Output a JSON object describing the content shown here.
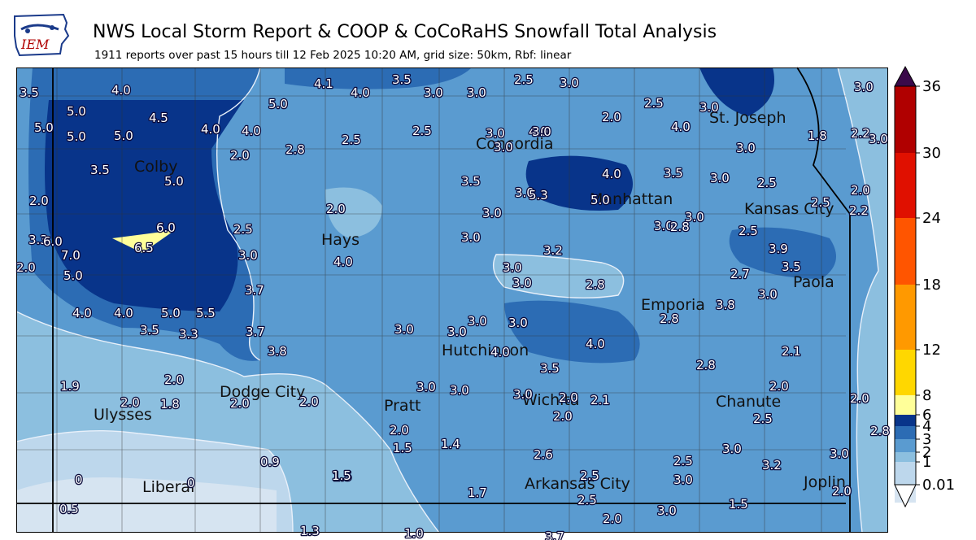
{
  "title": "NWS Local Storm Report & COOP & CoCoRaHS Snowfall Total Analysis",
  "subtitle": "1911 reports over past 15 hours till 12 Feb 2025 10:20 AM, grid size: 50km, Rbf: linear",
  "logo_text": "IEM",
  "colorbar": {
    "ticks": [
      "0.01",
      "1",
      "2",
      "3",
      "4",
      "6",
      "8",
      "12",
      "18",
      "24",
      "30",
      "36"
    ],
    "colors": [
      "#ffffff",
      "#d6e4f1",
      "#bdd7ec",
      "#8cbfdf",
      "#5a9bd0",
      "#2c6cb4",
      "#08348a",
      "#ffff99",
      "#ffd700",
      "#ff9900",
      "#ff5500",
      "#e01000",
      "#b00000",
      "#7a0000",
      "#3a0a4a"
    ]
  },
  "cities": [
    {
      "name": "Colby",
      "text": "Colby"
    },
    {
      "name": "Hays",
      "text": "Hays"
    },
    {
      "name": "Concordia",
      "text": "Concordia"
    },
    {
      "name": "Manhattan",
      "text": "Manhattan"
    },
    {
      "name": "St-Joseph",
      "text": "St. Joseph"
    },
    {
      "name": "Kansas-City",
      "text": "Kansas City"
    },
    {
      "name": "Paola",
      "text": "Paola"
    },
    {
      "name": "Emporia",
      "text": "Emporia"
    },
    {
      "name": "Hutchinson",
      "text": "Hutchinson"
    },
    {
      "name": "Dodge-City",
      "text": "Dodge City"
    },
    {
      "name": "Pratt",
      "text": "Pratt"
    },
    {
      "name": "Wichita",
      "text": "Wichita"
    },
    {
      "name": "Chanute",
      "text": "Chanute"
    },
    {
      "name": "Ulysses",
      "text": "Ulysses"
    },
    {
      "name": "Liberal",
      "text": "Liberal"
    },
    {
      "name": "Arkansas-City",
      "text": "Arkansas City"
    },
    {
      "name": "Joplin",
      "text": "Joplin"
    }
  ],
  "snow_values": [
    "3.5",
    "4.0",
    "4.1",
    "4.0",
    "3.5",
    "3.0",
    "3.0",
    "2.5",
    "3.0",
    "3.0",
    "5.0",
    "4.5",
    "5.0",
    "5.0",
    "5.0",
    "5.0",
    "4.0",
    "4.0",
    "2.5",
    "2.5",
    "2.5",
    "3.0",
    "2.2",
    "3.0",
    "2.0",
    "4.0",
    "4.0",
    "1.8",
    "3.0",
    "2.0",
    "2.8",
    "3.0",
    "3.0",
    "3.0",
    "3.5",
    "5.0",
    "3.5",
    "4.0",
    "3.5",
    "3.0",
    "2.5",
    "2.0",
    "3.0",
    "2.5",
    "2.0",
    "5.3",
    "5.0",
    "3.0",
    "2.0",
    "2.2",
    "6.0",
    "3.0",
    "3.0",
    "3.0",
    "2.5",
    "3.3",
    "2.8",
    "6.0",
    "6.5",
    "2.5",
    "7.0",
    "3.0",
    "3.2",
    "3.9",
    "2.0",
    "4.0",
    "5.0",
    "3.0",
    "3.0",
    "2.8",
    "2.7",
    "3.5",
    "3.0",
    "3.7",
    "4.0",
    "4.0",
    "5.0",
    "5.5",
    "3.0",
    "3.0",
    "3.0",
    "3.8",
    "3.5",
    "3.3",
    "3.7",
    "3.8",
    "3.0",
    "4.0",
    "2.1",
    "2.8",
    "2.8",
    "3.5",
    "4.0",
    "1.9",
    "2.0",
    "2.0",
    "2.0",
    "2.0",
    "3.0",
    "3.0",
    "2.1",
    "2.0",
    "2.0",
    "1.8",
    "3.0",
    "2.0",
    "2.0",
    "2.8",
    "2.5",
    "2.0",
    "0.9",
    "1.5",
    "1.4",
    "2.6",
    "2.5",
    "2.5",
    "3.0",
    "0",
    "1.5",
    "1.5",
    "3.2",
    "3.0",
    "1.7",
    "2.5",
    "3.0",
    "0",
    "3.0",
    "1.5",
    "2.0",
    "0.5",
    "2.0",
    "1.3",
    "1.0",
    "3.7"
  ]
}
